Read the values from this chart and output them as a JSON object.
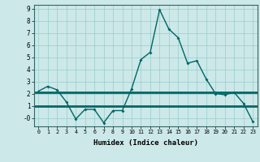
{
  "xlabel": "Humidex (Indice chaleur)",
  "x": [
    0,
    1,
    2,
    3,
    4,
    5,
    6,
    7,
    8,
    9,
    10,
    11,
    12,
    13,
    14,
    15,
    16,
    17,
    18,
    19,
    20,
    21,
    22,
    23
  ],
  "line1": [
    2.2,
    2.6,
    2.3,
    1.3,
    -0.1,
    0.7,
    0.7,
    -0.4,
    0.6,
    0.6,
    2.4,
    4.8,
    5.4,
    8.9,
    7.3,
    6.6,
    4.5,
    4.7,
    3.2,
    2.0,
    1.9,
    2.1,
    1.2,
    -0.3
  ],
  "line2_y": 2.1,
  "line3_y": 1.0,
  "bg_color": "#cce8e8",
  "line_color": "#006666",
  "grid_color": "#99cccc",
  "ylim": [
    -0.7,
    9.3
  ],
  "xlim": [
    -0.5,
    23.5
  ],
  "yticks": [
    9,
    8,
    7,
    6,
    5,
    4,
    3,
    2,
    1,
    0
  ],
  "ytick_labels": [
    "9",
    "8",
    "7",
    "6",
    "5",
    "4",
    "3",
    "2",
    "1",
    "-0"
  ]
}
